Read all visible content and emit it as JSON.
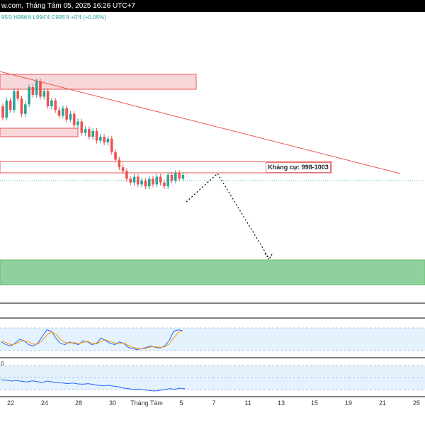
{
  "header": {
    "title": "w.com, Tháng Tám 05, 2025 16:26 UTC+7"
  },
  "ohlc_line": "95'0  H996'6  L994'4  C995'4  +0'4 (+0.05%)",
  "resistance_label": "Kháng cự: 998-1003",
  "indicator_badge": "0",
  "x_axis": {
    "ticks": [
      "22",
      "24",
      "28",
      "30",
      "Tháng Tám",
      "5",
      "7",
      "11",
      "13",
      "15",
      "19",
      "21",
      "25"
    ]
  },
  "colors": {
    "bull": "#26a69a",
    "bear": "#ef5350",
    "resistance_zone": "#f8d7da",
    "support_zone": "#8fd19e",
    "trendline": "#ef5350",
    "stoch_k": "#2962ff",
    "stoch_d": "#ff9800",
    "rsi_line": "#2962ff",
    "panel_bg": "#e3f2fd"
  },
  "chart_data": {
    "type": "candlestick",
    "candles": [
      {
        "o": 0.52,
        "c": 0.46
      },
      {
        "o": 0.46,
        "c": 0.55
      },
      {
        "o": 0.55,
        "c": 0.5
      },
      {
        "o": 0.5,
        "c": 0.6
      },
      {
        "o": 0.6,
        "c": 0.56
      },
      {
        "o": 0.56,
        "c": 0.48
      },
      {
        "o": 0.48,
        "c": 0.53
      },
      {
        "o": 0.53,
        "c": 0.62
      },
      {
        "o": 0.62,
        "c": 0.58
      },
      {
        "o": 0.58,
        "c": 0.65
      },
      {
        "o": 0.65,
        "c": 0.57
      },
      {
        "o": 0.57,
        "c": 0.6
      },
      {
        "o": 0.6,
        "c": 0.52
      },
      {
        "o": 0.52,
        "c": 0.55
      },
      {
        "o": 0.55,
        "c": 0.5
      },
      {
        "o": 0.5,
        "c": 0.47
      },
      {
        "o": 0.47,
        "c": 0.51
      },
      {
        "o": 0.51,
        "c": 0.45
      },
      {
        "o": 0.45,
        "c": 0.48
      },
      {
        "o": 0.48,
        "c": 0.42
      },
      {
        "o": 0.42,
        "c": 0.44
      },
      {
        "o": 0.44,
        "c": 0.38
      },
      {
        "o": 0.38,
        "c": 0.4
      },
      {
        "o": 0.4,
        "c": 0.36
      },
      {
        "o": 0.36,
        "c": 0.39
      },
      {
        "o": 0.39,
        "c": 0.34
      },
      {
        "o": 0.34,
        "c": 0.36
      },
      {
        "o": 0.36,
        "c": 0.33
      },
      {
        "o": 0.33,
        "c": 0.35
      },
      {
        "o": 0.35,
        "c": 0.28
      },
      {
        "o": 0.28,
        "c": 0.24
      },
      {
        "o": 0.24,
        "c": 0.2
      },
      {
        "o": 0.2,
        "c": 0.18
      },
      {
        "o": 0.18,
        "c": 0.14
      },
      {
        "o": 0.14,
        "c": 0.12
      },
      {
        "o": 0.12,
        "c": 0.15
      },
      {
        "o": 0.15,
        "c": 0.11
      },
      {
        "o": 0.11,
        "c": 0.13
      },
      {
        "o": 0.13,
        "c": 0.1
      },
      {
        "o": 0.1,
        "c": 0.14
      },
      {
        "o": 0.14,
        "c": 0.11
      },
      {
        "o": 0.11,
        "c": 0.15
      },
      {
        "o": 0.15,
        "c": 0.12
      },
      {
        "o": 0.12,
        "c": 0.1
      },
      {
        "o": 0.1,
        "c": 0.16
      },
      {
        "o": 0.16,
        "c": 0.13
      },
      {
        "o": 0.13,
        "c": 0.17
      },
      {
        "o": 0.17,
        "c": 0.14
      },
      {
        "o": 0.14,
        "c": 0.16
      }
    ],
    "stoch_k": [
      40,
      30,
      25,
      35,
      50,
      45,
      30,
      25,
      35,
      60,
      85,
      80,
      55,
      35,
      30,
      40,
      35,
      30,
      45,
      40,
      30,
      35,
      55,
      45,
      35,
      30,
      40,
      35,
      20,
      15,
      12,
      15,
      20,
      25,
      20,
      18,
      25,
      45,
      80,
      85,
      82
    ],
    "stoch_d": [
      45,
      38,
      30,
      32,
      40,
      45,
      40,
      32,
      32,
      45,
      65,
      78,
      70,
      50,
      38,
      36,
      38,
      34,
      38,
      42,
      36,
      33,
      42,
      48,
      42,
      36,
      35,
      36,
      28,
      20,
      16,
      14,
      17,
      22,
      22,
      20,
      22,
      32,
      55,
      75,
      82
    ],
    "rsi": [
      60,
      58,
      55,
      57,
      54,
      52,
      56,
      53,
      50,
      55,
      52,
      50,
      48,
      46,
      48,
      45,
      44,
      46,
      43,
      40,
      38,
      40,
      37,
      35,
      30,
      28,
      25,
      27,
      24,
      22,
      20,
      22,
      25,
      28,
      26,
      30,
      28
    ]
  }
}
